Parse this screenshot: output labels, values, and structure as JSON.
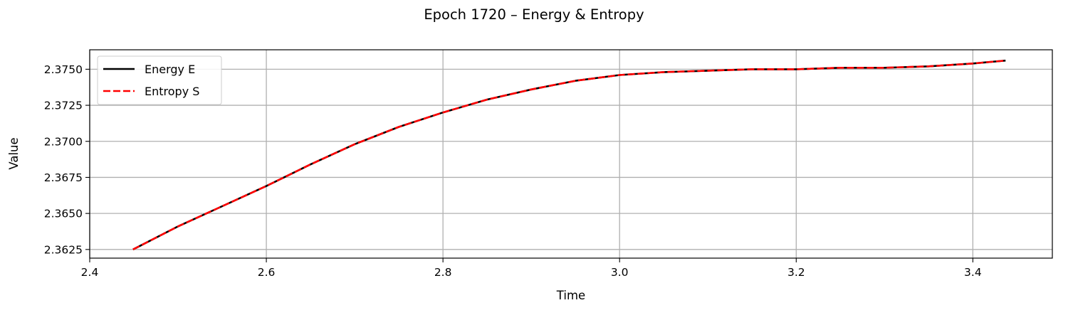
{
  "chart_data": {
    "type": "line",
    "title": "Epoch 1720 – Energy & Entropy",
    "xlabel": "Time",
    "ylabel": "Value",
    "xlim": [
      2.4,
      3.49
    ],
    "ylim": [
      2.3619,
      2.37635
    ],
    "xticks": [
      2.4,
      2.6,
      2.8,
      3.0,
      3.2,
      3.4
    ],
    "xtick_labels": [
      "2.4",
      "2.6",
      "2.8",
      "3.0",
      "3.2",
      "3.4"
    ],
    "yticks": [
      2.3625,
      2.365,
      2.3675,
      2.37,
      2.3725,
      2.375
    ],
    "ytick_labels": [
      "2.3625",
      "2.3650",
      "2.3675",
      "2.3700",
      "2.3725",
      "2.3750"
    ],
    "grid": true,
    "legend_position": "upper-left",
    "x": [
      2.449,
      2.5,
      2.55,
      2.6,
      2.65,
      2.7,
      2.75,
      2.8,
      2.85,
      2.9,
      2.95,
      3.0,
      3.05,
      3.1,
      3.15,
      3.2,
      3.25,
      3.3,
      3.35,
      3.4,
      3.437
    ],
    "series": [
      {
        "name": "Energy E",
        "color": "#000000",
        "style": "solid",
        "values": [
          2.3625,
          2.3641,
          2.3655,
          2.3669,
          2.3684,
          2.3698,
          2.371,
          2.372,
          2.3729,
          2.3736,
          2.3742,
          2.3746,
          2.3748,
          2.3749,
          2.375,
          2.375,
          2.3751,
          2.3751,
          2.3752,
          2.3754,
          2.3756
        ]
      },
      {
        "name": "Entropy S",
        "color": "#ff0000",
        "style": "dashed",
        "values": [
          2.3625,
          2.3641,
          2.3655,
          2.3669,
          2.3684,
          2.3698,
          2.371,
          2.372,
          2.3729,
          2.3736,
          2.3742,
          2.3746,
          2.3748,
          2.3749,
          2.375,
          2.375,
          2.3751,
          2.3751,
          2.3752,
          2.3754,
          2.3756
        ]
      }
    ]
  }
}
